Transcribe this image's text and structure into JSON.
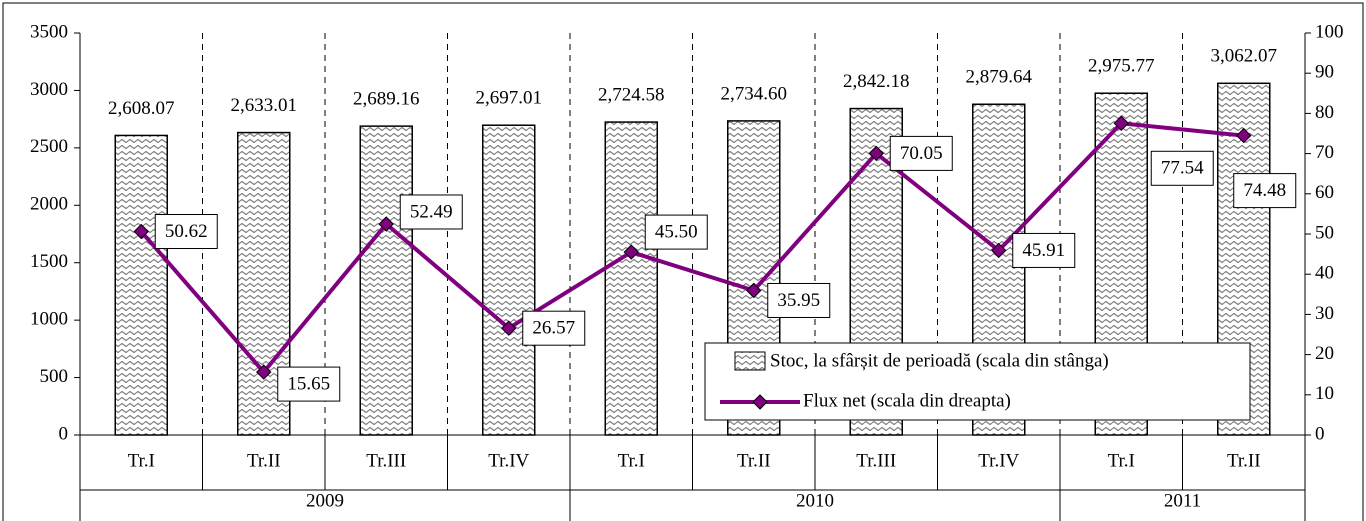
{
  "chart_data": {
    "type": "bar-line",
    "groups": [
      {
        "name": "2009",
        "categories": [
          "Tr.I",
          "Tr.II",
          "Tr.III",
          "Tr.IV"
        ]
      },
      {
        "name": "2010",
        "categories": [
          "Tr.I",
          "Tr.II",
          "Tr.III",
          "Tr.IV"
        ]
      },
      {
        "name": "2011",
        "categories": [
          "Tr.I",
          "Tr.II"
        ]
      }
    ],
    "series": [
      {
        "name": "Stoc, la sfârșit de perioadă (scala din stânga)",
        "type": "bar",
        "color": "#808080",
        "values": [
          2608.07,
          2633.01,
          2689.16,
          2697.01,
          2724.58,
          2734.6,
          2842.18,
          2879.64,
          2975.77,
          3062.07
        ],
        "value_labels": [
          "2,608.07",
          "2,633.01",
          "2,689.16",
          "2,697.01",
          "2,724.58",
          "2,734.60",
          "2,842.18",
          "2,879.64",
          "2,975.77",
          "3,062.07"
        ]
      },
      {
        "name": "Flux net (scala din dreapta)",
        "type": "line",
        "axis": "y2",
        "color": "#800080",
        "values": [
          50.62,
          15.65,
          52.49,
          26.57,
          45.5,
          35.95,
          70.05,
          45.91,
          77.54,
          74.48
        ],
        "value_labels": [
          "50.62",
          "15.65",
          "52.49",
          "26.57",
          "45.50",
          "35.95",
          "70.05",
          "45.91",
          "77.54",
          "74.48"
        ]
      }
    ],
    "ylim": [
      0,
      3500
    ],
    "yticks": [
      0,
      500,
      1000,
      1500,
      2000,
      2500,
      3000,
      3500
    ],
    "y2lim": [
      0,
      100
    ],
    "y2ticks": [
      0,
      10,
      20,
      30,
      40,
      50,
      60,
      70,
      80,
      90,
      100
    ]
  }
}
